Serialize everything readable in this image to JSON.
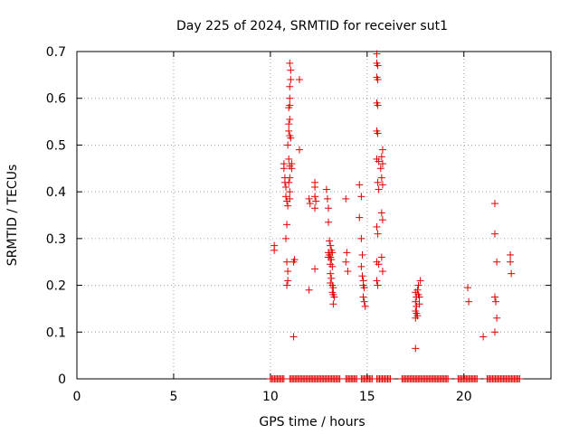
{
  "chart_data": {
    "type": "scatter",
    "title": "Day 225 of 2024, SRMTID for receiver sut1",
    "xlabel": "GPS time / hours",
    "ylabel": "SRMTID / TECUs",
    "xlim": [
      0,
      24.5
    ],
    "ylim": [
      0,
      0.7
    ],
    "x_ticks": [
      0,
      5,
      10,
      15,
      20
    ],
    "y_ticks": [
      0,
      0.1,
      0.2,
      0.3,
      0.4,
      0.5,
      0.6,
      0.7
    ],
    "x_tick_labels": [
      "0",
      "5",
      "10",
      "15",
      "20"
    ],
    "y_tick_labels": [
      "0",
      "0.1",
      "0.2",
      "0.3",
      "0.4",
      "0.5",
      "0.6",
      "0.7"
    ],
    "grid": true,
    "marker": "plus",
    "color": "#e00000",
    "series": [
      {
        "name": "SRMTID",
        "points": [
          [
            10.2,
            0.285
          ],
          [
            10.2,
            0.275
          ],
          [
            10.7,
            0.46
          ],
          [
            10.7,
            0.45
          ],
          [
            10.75,
            0.43
          ],
          [
            10.75,
            0.42
          ],
          [
            10.8,
            0.41
          ],
          [
            10.8,
            0.39
          ],
          [
            10.85,
            0.38
          ],
          [
            10.85,
            0.33
          ],
          [
            10.8,
            0.3
          ],
          [
            10.85,
            0.25
          ],
          [
            10.9,
            0.23
          ],
          [
            10.9,
            0.21
          ],
          [
            10.85,
            0.2
          ],
          [
            10.9,
            0.5
          ],
          [
            10.95,
            0.53
          ],
          [
            10.95,
            0.545
          ],
          [
            11.0,
            0.555
          ],
          [
            11.0,
            0.585
          ],
          [
            10.95,
            0.58
          ],
          [
            11.0,
            0.6
          ],
          [
            11.0,
            0.625
          ],
          [
            11.05,
            0.64
          ],
          [
            11.05,
            0.66
          ],
          [
            11.0,
            0.675
          ],
          [
            11.0,
            0.52
          ],
          [
            11.05,
            0.515
          ],
          [
            10.95,
            0.47
          ],
          [
            11.0,
            0.455
          ],
          [
            11.1,
            0.46
          ],
          [
            11.1,
            0.45
          ],
          [
            11.0,
            0.43
          ],
          [
            10.95,
            0.42
          ],
          [
            11.0,
            0.4
          ],
          [
            11.0,
            0.385
          ],
          [
            10.9,
            0.37
          ],
          [
            11.2,
            0.09
          ],
          [
            11.2,
            0.25
          ],
          [
            11.25,
            0.255
          ],
          [
            11.5,
            0.64
          ],
          [
            11.5,
            0.49
          ],
          [
            12.0,
            0.385
          ],
          [
            12.05,
            0.375
          ],
          [
            12.0,
            0.19
          ],
          [
            12.3,
            0.42
          ],
          [
            12.3,
            0.41
          ],
          [
            12.3,
            0.39
          ],
          [
            12.35,
            0.38
          ],
          [
            12.3,
            0.365
          ],
          [
            12.3,
            0.235
          ],
          [
            12.9,
            0.405
          ],
          [
            12.95,
            0.385
          ],
          [
            13.0,
            0.365
          ],
          [
            13.0,
            0.335
          ],
          [
            13.05,
            0.295
          ],
          [
            13.1,
            0.285
          ],
          [
            13.0,
            0.27
          ],
          [
            13.05,
            0.265
          ],
          [
            13.1,
            0.26
          ],
          [
            13.15,
            0.255
          ],
          [
            13.1,
            0.245
          ],
          [
            13.2,
            0.24
          ],
          [
            13.1,
            0.225
          ],
          [
            13.15,
            0.215
          ],
          [
            13.1,
            0.205
          ],
          [
            13.2,
            0.2
          ],
          [
            13.25,
            0.195
          ],
          [
            13.2,
            0.185
          ],
          [
            13.25,
            0.18
          ],
          [
            13.3,
            0.175
          ],
          [
            13.25,
            0.16
          ],
          [
            13.2,
            0.27
          ],
          [
            13.15,
            0.275
          ],
          [
            13.0,
            0.26
          ],
          [
            13.9,
            0.385
          ],
          [
            13.95,
            0.27
          ],
          [
            13.9,
            0.25
          ],
          [
            14.0,
            0.23
          ],
          [
            14.6,
            0.415
          ],
          [
            14.7,
            0.39
          ],
          [
            14.6,
            0.345
          ],
          [
            14.7,
            0.3
          ],
          [
            14.75,
            0.265
          ],
          [
            14.7,
            0.24
          ],
          [
            14.75,
            0.22
          ],
          [
            14.8,
            0.21
          ],
          [
            14.8,
            0.2
          ],
          [
            14.85,
            0.195
          ],
          [
            14.8,
            0.175
          ],
          [
            14.85,
            0.165
          ],
          [
            14.9,
            0.155
          ],
          [
            15.5,
            0.695
          ],
          [
            15.5,
            0.675
          ],
          [
            15.55,
            0.67
          ],
          [
            15.5,
            0.645
          ],
          [
            15.55,
            0.64
          ],
          [
            15.5,
            0.59
          ],
          [
            15.55,
            0.585
          ],
          [
            15.5,
            0.53
          ],
          [
            15.55,
            0.525
          ],
          [
            15.5,
            0.47
          ],
          [
            15.6,
            0.465
          ],
          [
            15.55,
            0.42
          ],
          [
            15.6,
            0.405
          ],
          [
            15.5,
            0.325
          ],
          [
            15.55,
            0.31
          ],
          [
            15.5,
            0.25
          ],
          [
            15.6,
            0.245
          ],
          [
            15.5,
            0.21
          ],
          [
            15.55,
            0.2
          ],
          [
            15.8,
            0.49
          ],
          [
            15.75,
            0.475
          ],
          [
            15.8,
            0.46
          ],
          [
            15.7,
            0.45
          ],
          [
            15.75,
            0.43
          ],
          [
            15.8,
            0.415
          ],
          [
            15.75,
            0.355
          ],
          [
            15.8,
            0.34
          ],
          [
            15.75,
            0.26
          ],
          [
            15.8,
            0.23
          ],
          [
            17.5,
            0.065
          ],
          [
            17.5,
            0.185
          ],
          [
            17.55,
            0.175
          ],
          [
            17.5,
            0.165
          ],
          [
            17.55,
            0.155
          ],
          [
            17.5,
            0.145
          ],
          [
            17.55,
            0.14
          ],
          [
            17.5,
            0.13
          ],
          [
            17.6,
            0.19
          ],
          [
            17.65,
            0.18
          ],
          [
            17.7,
            0.175
          ],
          [
            17.65,
            0.2
          ],
          [
            17.75,
            0.21
          ],
          [
            17.7,
            0.16
          ],
          [
            17.6,
            0.135
          ],
          [
            20.2,
            0.195
          ],
          [
            20.25,
            0.165
          ],
          [
            21.0,
            0.09
          ],
          [
            21.6,
            0.375
          ],
          [
            21.6,
            0.31
          ],
          [
            21.7,
            0.25
          ],
          [
            21.6,
            0.175
          ],
          [
            21.65,
            0.165
          ],
          [
            21.7,
            0.13
          ],
          [
            21.6,
            0.1
          ],
          [
            22.4,
            0.265
          ],
          [
            22.4,
            0.25
          ],
          [
            22.45,
            0.225
          ]
        ]
      },
      {
        "name": "SRMTID (zero values)",
        "x_ranges": [
          [
            10.0,
            10.7
          ],
          [
            11.0,
            13.6
          ],
          [
            13.9,
            14.5
          ],
          [
            14.7,
            15.3
          ],
          [
            15.5,
            16.2
          ],
          [
            16.8,
            19.2
          ],
          [
            19.7,
            20.7
          ],
          [
            21.2,
            22.9
          ]
        ],
        "y": 0
      }
    ]
  }
}
